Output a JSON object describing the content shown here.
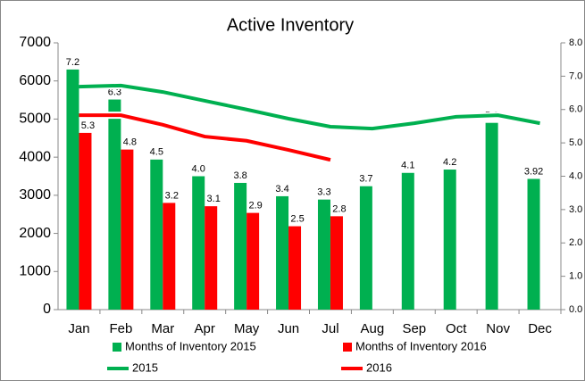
{
  "chart_data": {
    "type": "bar_line_combo",
    "title": "Active Inventory",
    "categories": [
      "Jan",
      "Feb",
      "Mar",
      "Apr",
      "May",
      "Jun",
      "Jul",
      "Aug",
      "Sep",
      "Oct",
      "Nov",
      "Dec"
    ],
    "series": [
      {
        "name": "Months of Inventory 2015",
        "kind": "bar",
        "axis": "y2",
        "color": "#00b050",
        "values": [
          7.2,
          6.3,
          4.5,
          4.0,
          3.8,
          3.4,
          3.3,
          3.7,
          4.1,
          4.2,
          5.6,
          3.92
        ],
        "value_labels": [
          "7.2",
          "6.3",
          "4.5",
          "4.0",
          "3.8",
          "3.4",
          "3.3",
          "3.7",
          "4.1",
          "4.2",
          "5.6",
          "3.92"
        ]
      },
      {
        "name": "Months of Inventory 2016",
        "kind": "bar",
        "axis": "y2",
        "color": "#ff0000",
        "values": [
          5.3,
          4.8,
          3.2,
          3.1,
          2.9,
          2.5,
          2.8,
          null,
          null,
          null,
          null,
          null
        ],
        "value_labels": [
          "5.3",
          "4.8",
          "3.2",
          "3.1",
          "2.9",
          "2.5",
          "2.8",
          null,
          null,
          null,
          null,
          null
        ]
      },
      {
        "name": "2015",
        "kind": "line",
        "color": "#00b050",
        "values": [
          5850,
          5880,
          5710,
          5480,
          5250,
          5010,
          4800,
          4750,
          4890,
          5060,
          5100,
          4890
        ]
      },
      {
        "name": "2016",
        "kind": "line",
        "color": "#ff0000",
        "values": [
          5100,
          5100,
          4850,
          4540,
          4430,
          4190,
          3930,
          null,
          null,
          null,
          null,
          null
        ]
      }
    ],
    "ylim": [
      0,
      7000
    ],
    "yticks": [
      0,
      1000,
      2000,
      3000,
      4000,
      5000,
      6000,
      7000
    ],
    "y2lim": [
      0,
      8
    ],
    "y2ticks": [
      {
        "value": 0,
        "label": "0.0"
      },
      {
        "value": 1,
        "label": "1.0"
      },
      {
        "value": 2,
        "label": "2.0"
      },
      {
        "value": 3,
        "label": "3.0"
      },
      {
        "value": 4,
        "label": "4.0"
      },
      {
        "value": 5,
        "label": "5.0"
      },
      {
        "value": 6,
        "label": "6.0"
      },
      {
        "value": 7,
        "label": "7.0"
      },
      {
        "value": 8,
        "label": "8.0"
      }
    ],
    "legend": "bottom"
  }
}
